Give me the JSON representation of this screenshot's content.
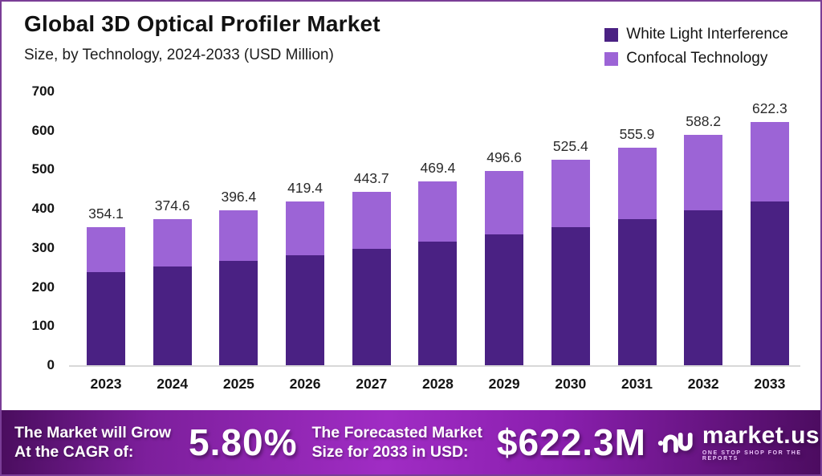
{
  "header": {
    "title": "Global 3D Optical Profiler Market",
    "subtitle": "Size, by Technology, 2024-2033 (USD Million)"
  },
  "legend": [
    {
      "label": "White Light Interference",
      "color": "#4a2183"
    },
    {
      "label": "Confocal Technology",
      "color": "#9c64d6"
    }
  ],
  "chart_data": {
    "type": "bar",
    "stacked": true,
    "title": "Global 3D Optical Profiler Market Size, by Technology, 2024-2033 (USD Million)",
    "categories": [
      "2023",
      "2024",
      "2025",
      "2026",
      "2027",
      "2028",
      "2029",
      "2030",
      "2031",
      "2032",
      "2033"
    ],
    "series": [
      {
        "name": "White Light Interference",
        "color": "#4a2183",
        "values": [
          238.0,
          251.8,
          266.4,
          281.8,
          298.2,
          315.5,
          333.8,
          353.1,
          373.6,
          395.3,
          418.2
        ]
      },
      {
        "name": "Confocal Technology",
        "color": "#9c64d6",
        "values": [
          116.1,
          122.8,
          130.0,
          137.6,
          145.5,
          153.9,
          162.8,
          172.3,
          182.3,
          192.9,
          204.1
        ]
      }
    ],
    "totals": [
      354.1,
      374.6,
      396.4,
      419.4,
      443.7,
      469.4,
      496.6,
      525.4,
      555.9,
      588.2,
      622.3
    ],
    "total_labels": [
      "354.1",
      "374.6",
      "396.4",
      "419.4",
      "443.7",
      "469.4",
      "496.6",
      "525.4",
      "555.9",
      "588.2",
      "622.3"
    ],
    "xlabel": "",
    "ylabel": "",
    "ylim": [
      0,
      700
    ],
    "yticks": [
      0,
      100,
      200,
      300,
      400,
      500,
      600,
      700
    ],
    "grid": false,
    "legend_position": "top-right"
  },
  "banner": {
    "cagr_label_line1": "The Market will Grow",
    "cagr_label_line2": "At the CAGR of:",
    "cagr_value": "5.80%",
    "forecast_label_line1": "The Forecasted Market",
    "forecast_label_line2": "Size for 2033 in USD:",
    "forecast_value": "$622.3M",
    "logo": {
      "name": "market.us",
      "tagline": "ONE STOP SHOP FOR THE REPORTS"
    }
  },
  "colors": {
    "series_dark": "#4a2183",
    "series_light": "#9c64d6",
    "page_border": "#7a3d96",
    "banner_center": "#a02cc4",
    "banner_edge": "#4a0d5e"
  }
}
